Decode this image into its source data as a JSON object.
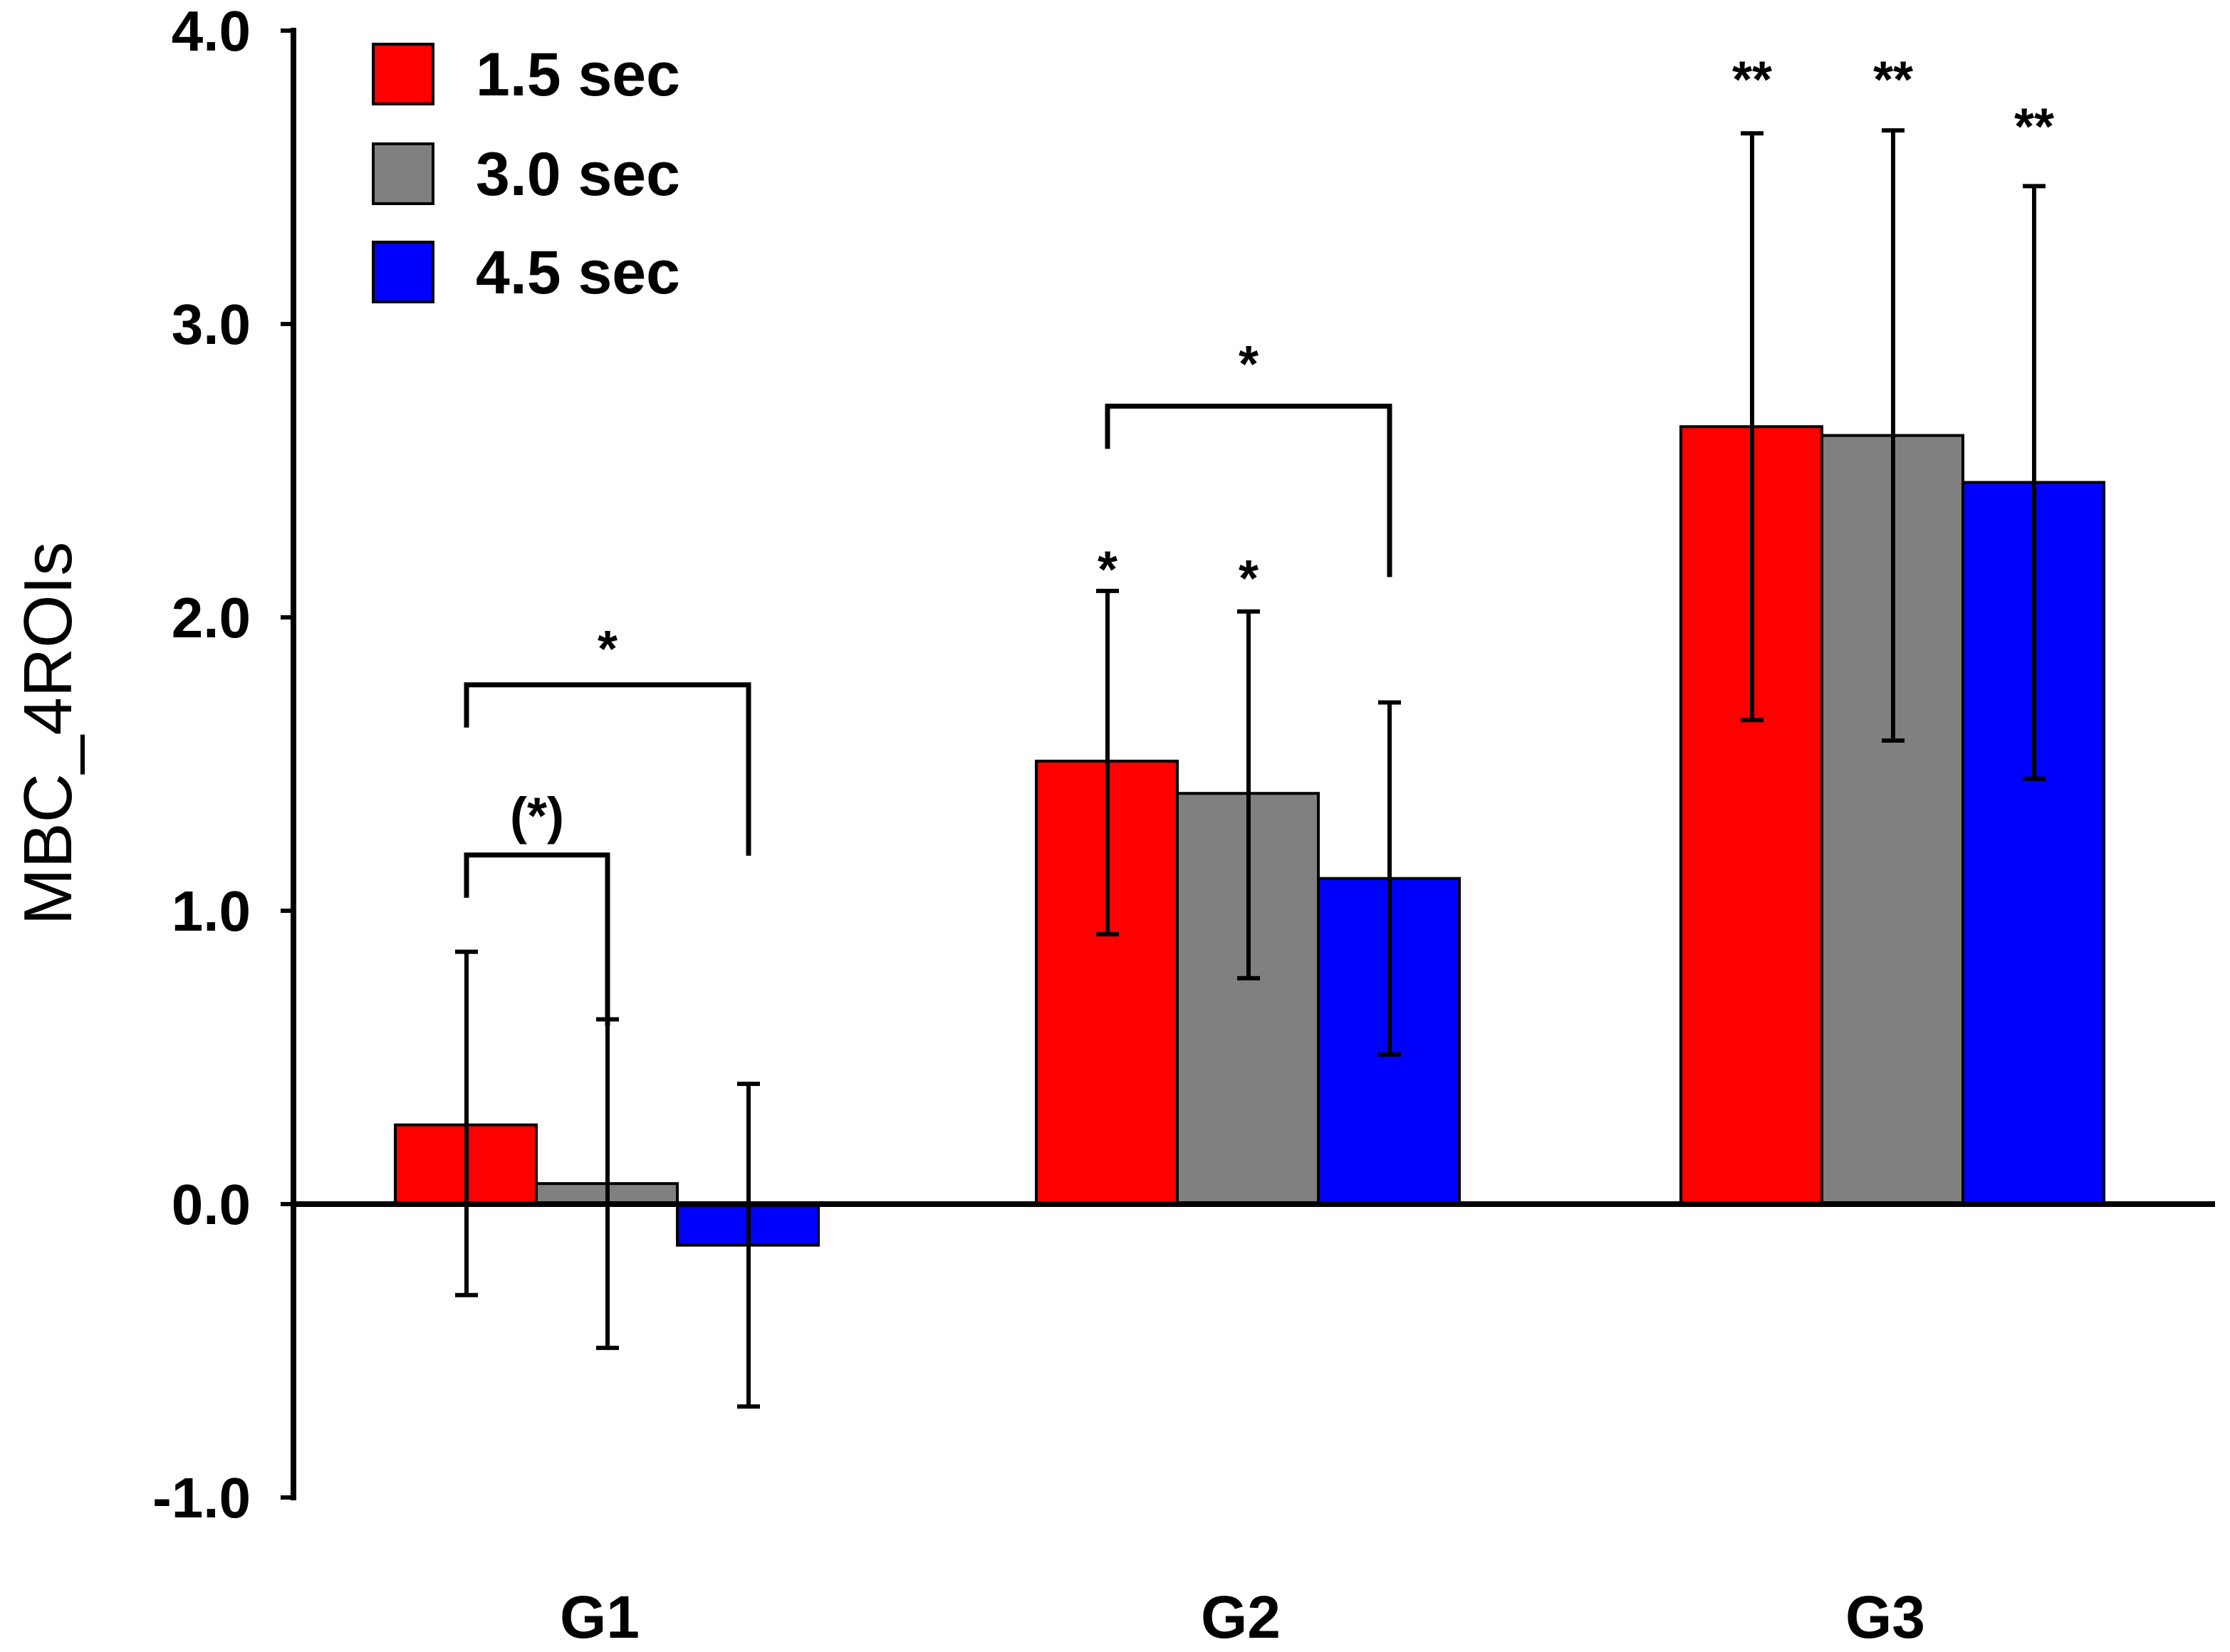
{
  "chart_data": {
    "type": "bar",
    "title": "",
    "xlabel": "",
    "ylabel": "MBC_4ROIs",
    "ylim": [
      -1.0,
      4.0
    ],
    "yticks": [
      "-1.0",
      "0.0",
      "1.0",
      "2.0",
      "3.0",
      "4.0"
    ],
    "categories": [
      "G1",
      "G2",
      "G3"
    ],
    "series": [
      {
        "name": "1.5 sec",
        "color": "#ff0000",
        "values": [
          0.27,
          1.51,
          2.65
        ],
        "err_low": [
          -0.31,
          0.92,
          1.65
        ],
        "err_high": [
          0.86,
          2.09,
          3.65
        ]
      },
      {
        "name": "3.0 sec",
        "color": "#808080",
        "values": [
          0.07,
          1.4,
          2.62
        ],
        "err_low": [
          -0.49,
          0.77,
          1.58
        ],
        "err_high": [
          0.63,
          2.02,
          3.66
        ]
      },
      {
        "name": "4.5 sec",
        "color": "#0000ff",
        "values": [
          -0.14,
          1.11,
          2.46
        ],
        "err_low": [
          -0.69,
          0.51,
          1.45
        ],
        "err_high": [
          0.41,
          1.71,
          3.47
        ]
      }
    ],
    "legend_position": "top-left",
    "annotations": [
      {
        "text": "*",
        "category": 0,
        "from_series": 0,
        "to_series": 2,
        "bracket_y": 1.77,
        "text_y": 1.93
      },
      {
        "text": "(*)",
        "category": 0,
        "from_series": 0,
        "to_series": 1,
        "bracket_y": 1.19,
        "text_y": 1.36
      },
      {
        "text": "*",
        "category": 1,
        "from_series": 0,
        "to_series": 2,
        "bracket_y": 2.72,
        "text_y": 2.9
      },
      {
        "text": "*",
        "category": 1,
        "series": 0,
        "text_y": 2.2
      },
      {
        "text": "*",
        "category": 1,
        "series": 1,
        "text_y": 2.17
      },
      {
        "text": "**",
        "category": 2,
        "series": 0,
        "text_y": 3.87
      },
      {
        "text": "**",
        "category": 2,
        "series": 1,
        "text_y": 3.87
      },
      {
        "text": "**",
        "category": 2,
        "series": 2,
        "text_y": 3.71
      }
    ]
  }
}
